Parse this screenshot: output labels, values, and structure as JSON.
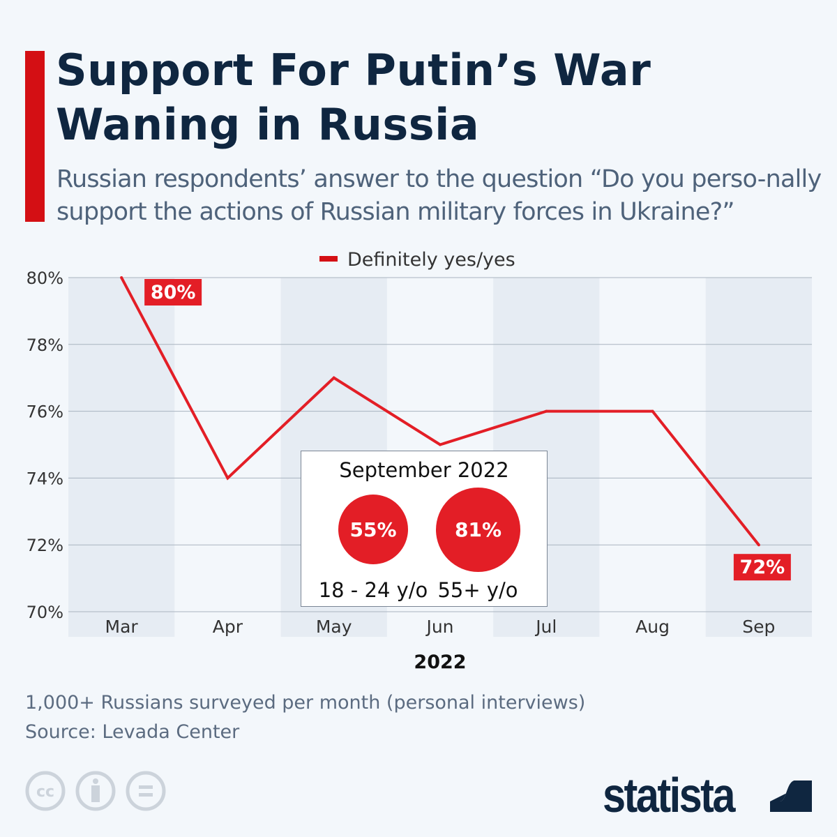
{
  "title_line1": "Support For Putin’s War",
  "title_line2": "Waning in Russia",
  "subtitle": "Russian respondents’ answer to the question “Do you perso-nally support the actions of Russian military forces in Ukraine?”",
  "inset": {
    "title": "September 2022",
    "groups": [
      {
        "value": "55%",
        "label": "18 - 24 y/o"
      },
      {
        "value": "81%",
        "label": "55+ y/o"
      }
    ]
  },
  "footer": {
    "note": "1,000+ Russians surveyed per month (personal interviews)",
    "source": "Source: Levada Center"
  },
  "brand": "statista",
  "colors": {
    "accent": "#e31e26",
    "title": "#0f2640"
  },
  "chart_data": {
    "type": "line",
    "categories": [
      "Mar",
      "Apr",
      "May",
      "Jun",
      "Jul",
      "Aug",
      "Sep"
    ],
    "series": [
      {
        "name": "Definitely yes/yes",
        "values": [
          80,
          74,
          77,
          75,
          76,
          76,
          72
        ]
      }
    ],
    "xlabel": "2022",
    "ylim": [
      70,
      80
    ],
    "yticks": [
      "70%",
      "72%",
      "74%",
      "76%",
      "78%",
      "80%"
    ],
    "data_labels": [
      {
        "index": 0,
        "text": "80%"
      },
      {
        "index": 6,
        "text": "72%"
      }
    ],
    "legend": "top-center",
    "grid": true
  }
}
